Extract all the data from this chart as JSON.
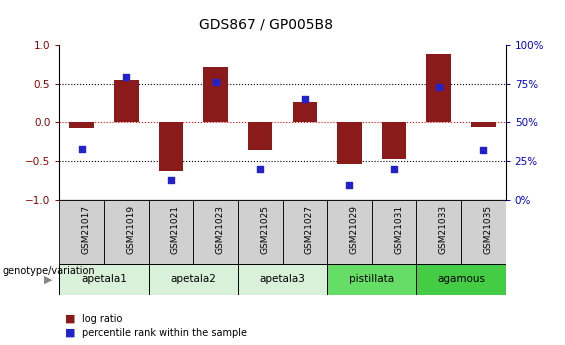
{
  "title": "GDS867 / GP005B8",
  "samples": [
    "GSM21017",
    "GSM21019",
    "GSM21021",
    "GSM21023",
    "GSM21025",
    "GSM21027",
    "GSM21029",
    "GSM21031",
    "GSM21033",
    "GSM21035"
  ],
  "log_ratio": [
    -0.07,
    0.55,
    -0.62,
    0.72,
    -0.35,
    0.27,
    -0.53,
    -0.47,
    0.88,
    -0.06
  ],
  "percentile_rank": [
    33,
    79,
    13,
    76,
    20,
    65,
    10,
    20,
    73,
    32
  ],
  "ylim": [
    -1,
    1
  ],
  "right_ylim": [
    0,
    100
  ],
  "right_yticks": [
    0,
    25,
    50,
    75,
    100
  ],
  "right_yticklabels": [
    "0%",
    "25%",
    "50%",
    "75%",
    "100%"
  ],
  "left_yticks": [
    -1,
    -0.5,
    0,
    0.5,
    1
  ],
  "hlines": [
    0.5,
    0.0,
    -0.5
  ],
  "hline_colors": [
    "black",
    "red",
    "black"
  ],
  "hline_styles": [
    "dotted",
    "dotted",
    "dotted"
  ],
  "bar_color": "#8B1A1A",
  "dot_color": "#2222CC",
  "bar_width": 0.55,
  "genotype_groups": [
    {
      "label": "apetala1",
      "start": 0,
      "end": 1,
      "color": "#d9f0d9"
    },
    {
      "label": "apetala2",
      "start": 2,
      "end": 3,
      "color": "#d9f0d9"
    },
    {
      "label": "apetala3",
      "start": 4,
      "end": 5,
      "color": "#d9f0d9"
    },
    {
      "label": "pistillata",
      "start": 6,
      "end": 7,
      "color": "#66dd66"
    },
    {
      "label": "agamous",
      "start": 8,
      "end": 9,
      "color": "#44cc44"
    }
  ],
  "sample_box_color": "#d0d0d0",
  "legend_bar_color": "#8B1A1A",
  "legend_dot_color": "#2222CC",
  "legend_label_bar": "log ratio",
  "legend_label_dot": "percentile rank within the sample",
  "genotype_label": "genotype/variation",
  "background_color": "#ffffff",
  "tick_color_left": "#8B0000",
  "tick_color_right": "#0000CD",
  "title_fontsize": 10,
  "axis_fontsize": 7.5
}
